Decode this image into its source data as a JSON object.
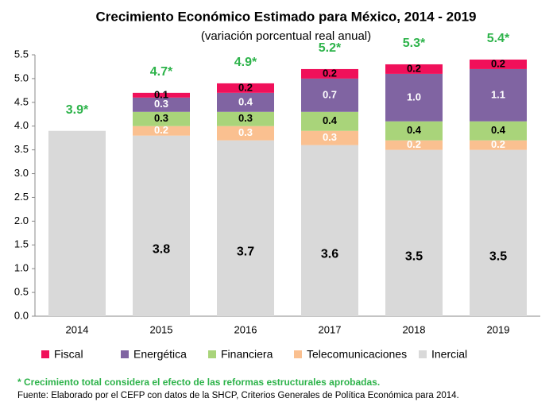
{
  "chart_data": {
    "type": "stacked_bar",
    "title": "Crecimiento Económico  Estimado para México, 2014 - 2019",
    "subtitle": "(variación porcentual real anual)",
    "categories": [
      "2014",
      "2015",
      "2016",
      "2017",
      "2018",
      "2019"
    ],
    "series": [
      {
        "name": "Inercial",
        "color": "#d9d9d9",
        "values": [
          3.9,
          3.8,
          3.7,
          3.6,
          3.5,
          3.5
        ],
        "value_labels": [
          null,
          "3.8",
          "3.7",
          "3.6",
          "3.5",
          "3.5"
        ]
      },
      {
        "name": "Telecomunicaciones",
        "color": "#fac090",
        "values": [
          null,
          0.2,
          0.3,
          0.3,
          0.2,
          0.2
        ]
      },
      {
        "name": "Financiera",
        "color": "#a9d47a",
        "values": [
          null,
          0.3,
          0.3,
          0.4,
          0.4,
          0.4
        ]
      },
      {
        "name": "Energética",
        "color": "#8064a2",
        "values": [
          null,
          0.3,
          0.4,
          0.7,
          1.0,
          1.1
        ],
        "value_labels": [
          null,
          "0.3",
          "0.4",
          "0.7",
          "1.0",
          "1.1"
        ]
      },
      {
        "name": "Fiscal",
        "color": "#f0105a",
        "values": [
          null,
          0.1,
          0.2,
          0.2,
          0.2,
          0.2
        ]
      }
    ],
    "totals": {
      "values": [
        3.9,
        4.7,
        4.9,
        5.2,
        5.3,
        5.4
      ],
      "labels": [
        "3.9*",
        "4.7*",
        "4.9*",
        "5.2*",
        "5.3*",
        "5.4*"
      ],
      "color": "#2db34a"
    },
    "ylim": [
      0,
      5.5
    ],
    "yticks": [
      {
        "value": 0,
        "label": "0.0"
      },
      0.5,
      {
        "value": 1,
        "label": "1.0"
      },
      1.5,
      {
        "value": 2,
        "label": "2.0"
      },
      2.5,
      {
        "value": 3,
        "label": "3.0"
      },
      3.5,
      {
        "value": 4,
        "label": "4.0"
      },
      4.5,
      {
        "value": 5,
        "label": "5.0"
      },
      5.5
    ],
    "grid": false,
    "legend": "bottom",
    "notes": [
      "* Crecimiento total considera el efecto de las reformas estructurales aprobadas.",
      "Fuente: Elaborado por el CEFP con datos de la SHCP, Criterios Generales de Política Económica para 2014."
    ]
  }
}
